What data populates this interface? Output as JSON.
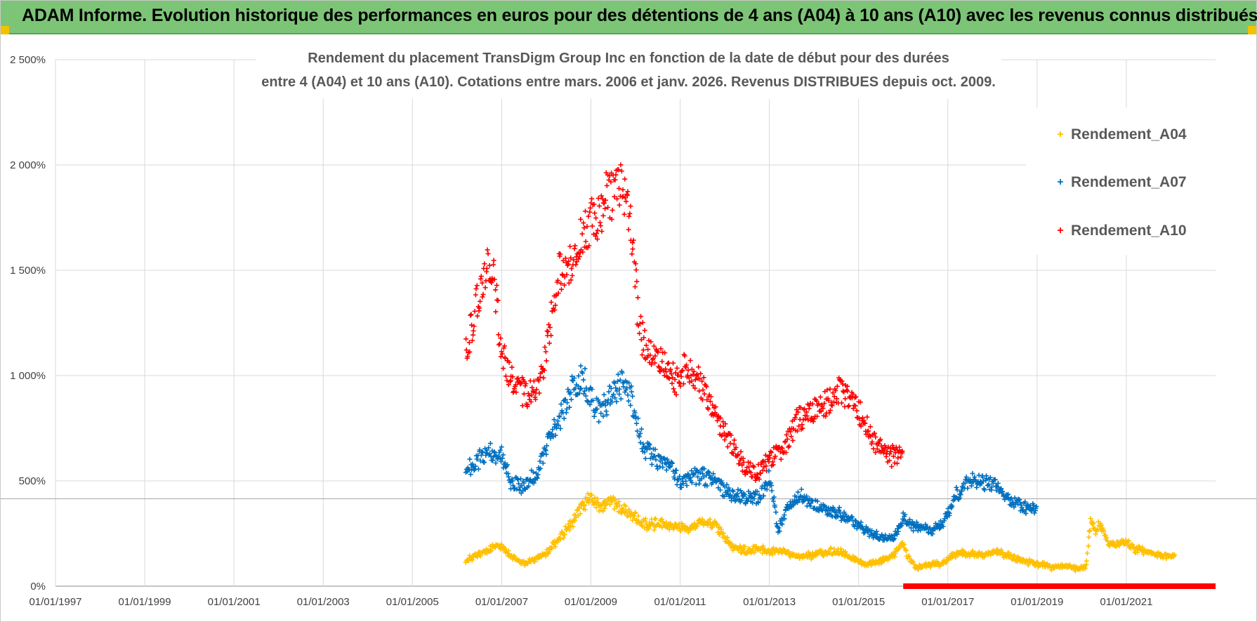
{
  "header": {
    "title": "ADAM Informe. Evolution historique des performances en euros pour des détentions de 4 ans (A04) à 10 ans (A10) avec les revenus connus distribués",
    "background": "#7cc576"
  },
  "chart_data": {
    "type": "scatter",
    "title_lines": [
      "Rendement du placement TransDigm Group Inc en fonction de la date de début pour des durées",
      "entre 4 (A04) et 10 ans (A10).  Cotations entre mars. 2006 et janv. 2026. Revenus DISTRIBUES depuis oct. 2009."
    ],
    "xlabel": "",
    "ylabel": "",
    "x_range": [
      1997.0,
      2023.0
    ],
    "ylim": [
      0,
      2500
    ],
    "y_ticks": [
      0,
      500,
      1000,
      1500,
      2000,
      2500
    ],
    "y_tick_labels": [
      "0%",
      "500%",
      "1 000%",
      "1 500%",
      "2 000%",
      "2 500%"
    ],
    "x_ticks": [
      1997,
      1999,
      2001,
      2003,
      2005,
      2007,
      2009,
      2011,
      2013,
      2015,
      2017,
      2019,
      2021
    ],
    "x_tick_labels": [
      "01/01/1997",
      "01/01/1999",
      "01/01/2001",
      "01/01/2003",
      "01/01/2005",
      "01/01/2007",
      "01/01/2009",
      "01/01/2011",
      "01/01/2013",
      "01/01/2015",
      "01/01/2017",
      "01/01/2019",
      "01/01/2021"
    ],
    "reference_line_y": 415,
    "grid": true,
    "legend_position": "top-right",
    "series": [
      {
        "name": "Rendement_A04",
        "color": "#ffc000",
        "points": [
          [
            2006.2,
            120
          ],
          [
            2006.5,
            150
          ],
          [
            2006.8,
            180
          ],
          [
            2007.0,
            200
          ],
          [
            2007.2,
            140
          ],
          [
            2007.5,
            110
          ],
          [
            2007.8,
            130
          ],
          [
            2008.0,
            160
          ],
          [
            2008.3,
            230
          ],
          [
            2008.6,
            310
          ],
          [
            2008.8,
            380
          ],
          [
            2009.0,
            420
          ],
          [
            2009.2,
            380
          ],
          [
            2009.5,
            400
          ],
          [
            2009.8,
            350
          ],
          [
            2010.0,
            320
          ],
          [
            2010.3,
            290
          ],
          [
            2010.6,
            300
          ],
          [
            2010.9,
            290
          ],
          [
            2011.2,
            270
          ],
          [
            2011.5,
            310
          ],
          [
            2011.8,
            290
          ],
          [
            2012.0,
            230
          ],
          [
            2012.2,
            180
          ],
          [
            2012.5,
            170
          ],
          [
            2012.8,
            180
          ],
          [
            2013.0,
            160
          ],
          [
            2013.2,
            170
          ],
          [
            2013.5,
            150
          ],
          [
            2013.8,
            140
          ],
          [
            2014.0,
            150
          ],
          [
            2014.3,
            160
          ],
          [
            2014.6,
            170
          ],
          [
            2014.9,
            130
          ],
          [
            2015.2,
            100
          ],
          [
            2015.5,
            120
          ],
          [
            2015.8,
            150
          ],
          [
            2016.0,
            210
          ],
          [
            2016.1,
            140
          ],
          [
            2016.3,
            90
          ],
          [
            2016.6,
            100
          ],
          [
            2016.9,
            110
          ],
          [
            2017.2,
            160
          ],
          [
            2017.5,
            150
          ],
          [
            2017.8,
            150
          ],
          [
            2018.1,
            170
          ],
          [
            2018.4,
            140
          ],
          [
            2018.7,
            120
          ],
          [
            2019.0,
            110
          ],
          [
            2019.3,
            90
          ],
          [
            2019.6,
            100
          ],
          [
            2019.9,
            80
          ],
          [
            2020.1,
            90
          ],
          [
            2020.2,
            320
          ],
          [
            2020.3,
            260
          ],
          [
            2020.4,
            300
          ],
          [
            2020.6,
            200
          ],
          [
            2020.9,
            210
          ],
          [
            2021.2,
            180
          ],
          [
            2021.5,
            160
          ],
          [
            2021.8,
            150
          ],
          [
            2022.1,
            140
          ]
        ]
      },
      {
        "name": "Rendement_A07",
        "color": "#0070c0",
        "points": [
          [
            2006.2,
            540
          ],
          [
            2006.5,
            600
          ],
          [
            2006.8,
            640
          ],
          [
            2007.0,
            620
          ],
          [
            2007.2,
            500
          ],
          [
            2007.5,
            470
          ],
          [
            2007.8,
            550
          ],
          [
            2008.0,
            660
          ],
          [
            2008.3,
            800
          ],
          [
            2008.6,
            950
          ],
          [
            2008.8,
            1000
          ],
          [
            2009.0,
            900
          ],
          [
            2009.2,
            820
          ],
          [
            2009.5,
            920
          ],
          [
            2009.8,
            980
          ],
          [
            2010.0,
            800
          ],
          [
            2010.2,
            650
          ],
          [
            2010.5,
            600
          ],
          [
            2010.8,
            560
          ],
          [
            2011.0,
            490
          ],
          [
            2011.3,
            520
          ],
          [
            2011.6,
            520
          ],
          [
            2011.9,
            470
          ],
          [
            2012.2,
            430
          ],
          [
            2012.5,
            420
          ],
          [
            2012.8,
            420
          ],
          [
            2013.0,
            520
          ],
          [
            2013.2,
            260
          ],
          [
            2013.4,
            380
          ],
          [
            2013.7,
            430
          ],
          [
            2014.0,
            390
          ],
          [
            2014.3,
            360
          ],
          [
            2014.6,
            340
          ],
          [
            2014.9,
            300
          ],
          [
            2015.2,
            260
          ],
          [
            2015.5,
            230
          ],
          [
            2015.8,
            230
          ],
          [
            2016.0,
            320
          ],
          [
            2016.3,
            280
          ],
          [
            2016.6,
            260
          ],
          [
            2016.9,
            300
          ],
          [
            2017.2,
            440
          ],
          [
            2017.5,
            500
          ],
          [
            2017.8,
            490
          ],
          [
            2018.1,
            480
          ],
          [
            2018.4,
            400
          ],
          [
            2018.7,
            370
          ],
          [
            2019.0,
            370
          ]
        ]
      },
      {
        "name": "Rendement_A10",
        "color": "#ff0000",
        "points": [
          [
            2006.2,
            1100
          ],
          [
            2006.4,
            1300
          ],
          [
            2006.6,
            1500
          ],
          [
            2006.8,
            1550
          ],
          [
            2007.0,
            1100
          ],
          [
            2007.3,
            950
          ],
          [
            2007.6,
            900
          ],
          [
            2007.9,
            1000
          ],
          [
            2008.1,
            1250
          ],
          [
            2008.3,
            1500
          ],
          [
            2008.6,
            1550
          ],
          [
            2008.9,
            1700
          ],
          [
            2009.1,
            1750
          ],
          [
            2009.4,
            1850
          ],
          [
            2009.7,
            1900
          ],
          [
            2009.9,
            1700
          ],
          [
            2010.1,
            1200
          ],
          [
            2010.3,
            1100
          ],
          [
            2010.6,
            1050
          ],
          [
            2010.9,
            980
          ],
          [
            2011.2,
            1050
          ],
          [
            2011.5,
            950
          ],
          [
            2011.8,
            800
          ],
          [
            2012.1,
            700
          ],
          [
            2012.4,
            580
          ],
          [
            2012.7,
            530
          ],
          [
            2013.0,
            600
          ],
          [
            2013.3,
            650
          ],
          [
            2013.6,
            780
          ],
          [
            2013.9,
            830
          ],
          [
            2014.2,
            850
          ],
          [
            2014.5,
            930
          ],
          [
            2014.8,
            900
          ],
          [
            2015.1,
            800
          ],
          [
            2015.4,
            660
          ],
          [
            2015.7,
            620
          ],
          [
            2016.0,
            620
          ]
        ],
        "zero_band": [
          2016.0,
          2023.0
        ]
      }
    ]
  }
}
